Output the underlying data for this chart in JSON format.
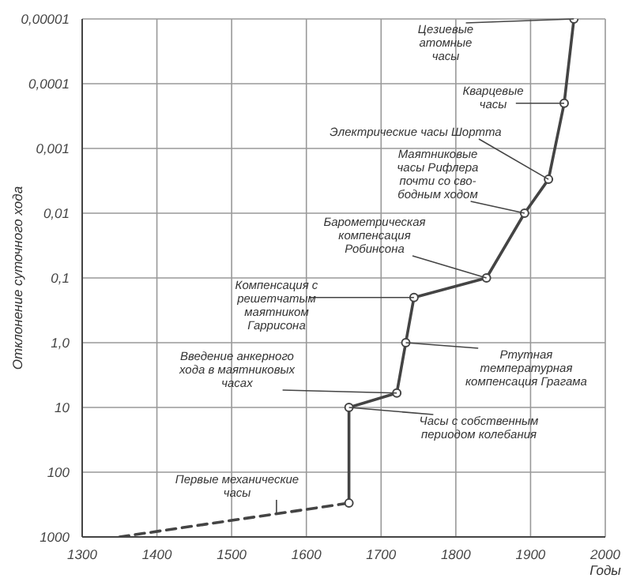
{
  "chart_data": {
    "type": "line",
    "xlabel": "Годы",
    "ylabel": "Отклонение суточного хода",
    "xlim": [
      1300,
      2000
    ],
    "xticks": [
      1300,
      1400,
      1500,
      1600,
      1700,
      1800,
      1900,
      2000
    ],
    "ylim": [
      1000,
      1e-05
    ],
    "log": "y",
    "yticks": [
      {
        "value": 1e-05,
        "label": "0,00001"
      },
      {
        "value": 0.0001,
        "label": "0,0001"
      },
      {
        "value": 0.001,
        "label": "0,001"
      },
      {
        "value": 0.01,
        "label": "0,01"
      },
      {
        "value": 0.1,
        "label": "0,1"
      },
      {
        "value": 1,
        "label": "1,0"
      },
      10,
      100,
      1000
    ],
    "grid": true,
    "series": [
      {
        "color": "#444444",
        "line_style": "dashed",
        "x": [
          1350,
          1657
        ],
        "values": [
          1000,
          300
        ]
      },
      {
        "color": "#444444",
        "line_style": "solid",
        "marker": "circle",
        "x": [
          1657,
          1657,
          1721,
          1733,
          1744,
          1841,
          1892,
          1924,
          1945,
          1958
        ],
        "values": [
          300,
          10,
          6,
          1,
          0.2,
          0.1,
          0.01,
          0.003,
          0.0002,
          1e-05
        ]
      }
    ],
    "annotations": [
      {
        "text": "Первые механические\nчасы",
        "x": 1560,
        "y": 450
      },
      {
        "text": "Введение анкерного\nхода в маятниковых\nчасах",
        "x": 1721,
        "y": 6
      },
      {
        "text": "Часы с собственным\nпериодом колебания",
        "x": 1657,
        "y": 10
      },
      {
        "text": "Компенсация с\nрешетчатым\nмаятником\nГаррисона",
        "x": 1744,
        "y": 0.2
      },
      {
        "text": "Ртутная\nтемпературная\nкомпенсация Грагама",
        "x": 1733,
        "y": 1
      },
      {
        "text": "Барометрическая\nкомпенсация\nРобинсона",
        "x": 1841,
        "y": 0.1
      },
      {
        "text": "Маятниковые\nчасы Рифлера\nпочти со сво-\nбодным ходом",
        "x": 1892,
        "y": 0.01
      },
      {
        "text": "Электрические часы Шортта",
        "x": 1924,
        "y": 0.003
      },
      {
        "text": "Кварцевые\nчасы",
        "x": 1945,
        "y": 0.0002
      },
      {
        "text": "Цезиевые\nатомные\nчасы",
        "x": 1958,
        "y": 1e-05
      }
    ]
  }
}
